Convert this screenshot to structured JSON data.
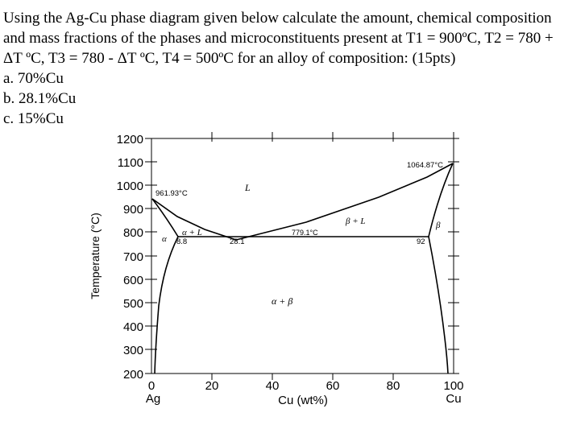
{
  "question": {
    "line1": "Using the Ag-Cu phase diagram given below calculate the amount, chemical composition",
    "line2": "and mass fractions of the phases and microconstituents present at T1 = 900ºC, T2 = 780 +",
    "line3": "ΔT ºC, T3 = 780 - ΔT ºC, T4 = 500ºC for an alloy of composition: (15pts)",
    "options": [
      "a. 70%Cu",
      "b. 28.1%Cu",
      "c. 15%Cu"
    ]
  },
  "diagram": {
    "ylabel": "Temperature (°C)",
    "xlabel": "Cu (wt%)",
    "x_ticks": [
      "0",
      "20",
      "40",
      "60",
      "80",
      "100"
    ],
    "y_ticks": [
      "200",
      "300",
      "400",
      "500",
      "600",
      "700",
      "800",
      "900",
      "1000",
      "1100",
      "1200"
    ],
    "left_element": "Ag",
    "right_element": "Cu",
    "annotations": {
      "ag_melting": "961.93°C",
      "cu_melting": "1064.87°C",
      "eutectic_temp": "779.1°C",
      "alpha_max_solubility": "8.8",
      "eutectic_composition": "28.1",
      "beta_max_solubility": "92"
    },
    "regions": {
      "liquid": "L",
      "alpha_plus_liquid": "α + L",
      "beta_plus_liquid": "β + L",
      "alpha": "α",
      "beta": "β",
      "alpha_plus_beta": "α + β"
    }
  }
}
